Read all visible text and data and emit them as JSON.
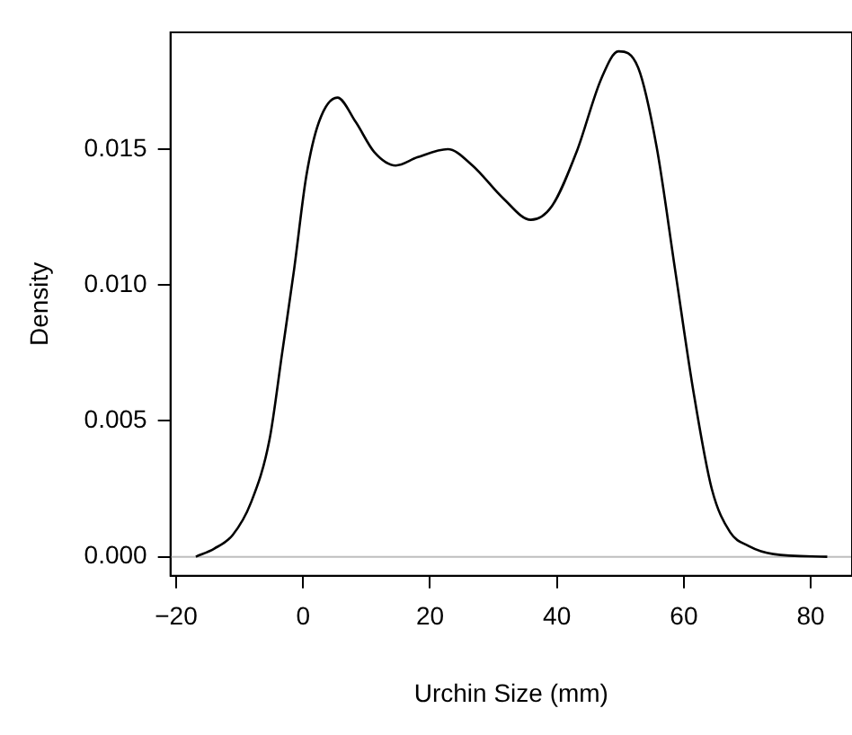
{
  "chart_data": {
    "type": "line",
    "xlabel": "Urchin Size (mm)",
    "ylabel": "Density",
    "series": [
      {
        "color": "#000000",
        "x": [
          -16.9,
          -14.0,
          -11.1,
          -8.2,
          -5.3,
          -3.3,
          -1.4,
          0.5,
          2.5,
          5.4,
          8.3,
          11.2,
          14.6,
          18.0,
          22.8,
          26.7,
          31.5,
          35.9,
          39.2,
          43.1,
          47.0,
          49.7,
          52.8,
          55.7,
          58.6,
          61.5,
          64.4,
          67.3,
          70.2,
          74.1,
          82.6
        ],
        "values": [
          0,
          0.0003,
          0.0008,
          0.002,
          0.0043,
          0.0075,
          0.0106,
          0.014,
          0.016,
          0.0169,
          0.016,
          0.0149,
          0.0144,
          0.0147,
          0.015,
          0.0144,
          0.0132,
          0.0124,
          0.0129,
          0.0149,
          0.0176,
          0.0186,
          0.018,
          0.0151,
          0.0106,
          0.0061,
          0.0025,
          0.0009,
          0.0004,
          0.0001,
          0
        ]
      }
    ],
    "xlim": [
      -20.9,
      86.5
    ],
    "xticks": [
      {
        "value": -20,
        "label": "−20"
      },
      0,
      20,
      40,
      60,
      80
    ],
    "ylim": [
      -0.0007,
      0.0193
    ],
    "yticks": [
      {
        "value": 0,
        "label": "0.000"
      },
      {
        "value": 0.005,
        "label": "0.005"
      },
      {
        "value": 0.01,
        "label": "0.010"
      },
      {
        "value": 0.015,
        "label": "0.015"
      }
    ],
    "ref_lines": [
      {
        "axis": "y",
        "value": 0,
        "color": "#bebebe"
      }
    ],
    "grid": false,
    "legend": false,
    "marker": "none",
    "line_style": "solid"
  }
}
